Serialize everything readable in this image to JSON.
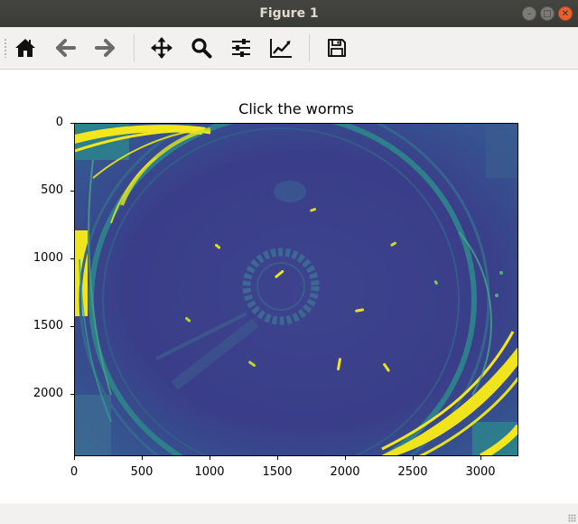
{
  "window": {
    "title": "Figure 1"
  },
  "toolbar": {
    "buttons": [
      {
        "name": "home-button",
        "icon": "home-icon",
        "tooltip": "Reset original view"
      },
      {
        "name": "back-button",
        "icon": "arrow-left-icon",
        "tooltip": "Back to previous view"
      },
      {
        "name": "forward-button",
        "icon": "arrow-right-icon",
        "tooltip": "Forward to next view"
      },
      {
        "name": "pan-button",
        "icon": "move-icon",
        "tooltip": "Pan axes"
      },
      {
        "name": "zoom-button",
        "icon": "zoom-icon",
        "tooltip": "Zoom to rectangle"
      },
      {
        "name": "subplots-button",
        "icon": "sliders-icon",
        "tooltip": "Configure subplots"
      },
      {
        "name": "edit-axis-button",
        "icon": "chart-line-icon",
        "tooltip": "Edit axis"
      },
      {
        "name": "save-button",
        "icon": "floppy-icon",
        "tooltip": "Save the figure"
      }
    ]
  },
  "figure": {
    "title": "Click the worms",
    "x_ticks": [
      "0",
      "500",
      "1000",
      "1500",
      "2000",
      "2500",
      "3000"
    ],
    "y_ticks": [
      "0",
      "500",
      "1000",
      "1500",
      "2000"
    ]
  },
  "colors": {
    "plot_background": "#3a3f8b",
    "worm": "#e7e419",
    "teal": "#2a8a8c"
  }
}
